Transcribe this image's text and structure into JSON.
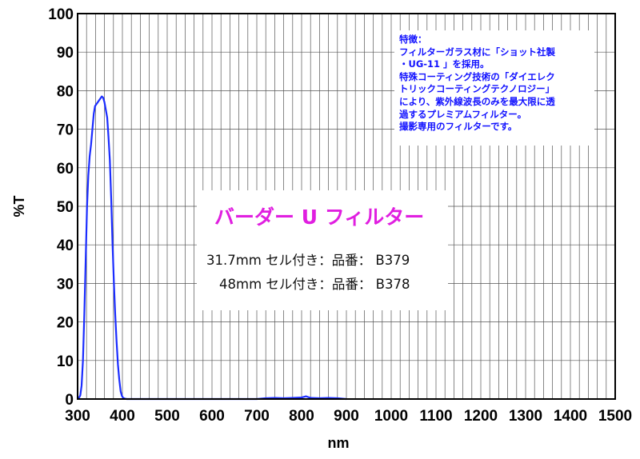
{
  "chart_data": {
    "type": "line",
    "xlabel": "nm",
    "ylabel": "%T",
    "xlim": [
      300,
      1500
    ],
    "ylim": [
      0,
      100
    ],
    "x_ticks": [
      300,
      400,
      500,
      600,
      700,
      800,
      900,
      1000,
      1100,
      1200,
      1300,
      1400,
      1500
    ],
    "y_ticks": [
      0,
      10,
      20,
      30,
      40,
      50,
      60,
      70,
      80,
      90,
      100
    ],
    "x_minor_step": 20,
    "grid": true,
    "line_color": "#1a2cff",
    "series": [
      {
        "x": [
          300,
          303,
          306,
          309,
          312,
          315,
          318,
          321,
          324,
          327,
          330,
          333,
          336,
          339,
          342,
          345,
          348,
          351,
          354,
          357,
          360,
          363,
          366,
          369,
          372,
          375,
          378,
          381,
          384,
          387,
          390,
          393,
          396,
          399,
          402,
          405,
          410,
          420,
          450,
          500,
          550,
          600,
          650,
          700,
          720,
          740,
          760,
          780,
          800,
          810,
          820,
          840,
          860,
          880,
          900
        ],
        "y": [
          0,
          0.3,
          1,
          3.5,
          10,
          22,
          36,
          50,
          58,
          63,
          66,
          70,
          74,
          76,
          76.5,
          77,
          77.5,
          78,
          78.5,
          78.2,
          77,
          75,
          73,
          68,
          62,
          52,
          40,
          30,
          22,
          15,
          9,
          5,
          2,
          0.8,
          0.3,
          0.1,
          0,
          0,
          0,
          0,
          0,
          0,
          0,
          0,
          0.2,
          0.3,
          0.2,
          0.3,
          0.4,
          0.7,
          0.3,
          0.2,
          0.3,
          0.2,
          0
        ]
      }
    ]
  },
  "note": {
    "lines": [
      "特徴：",
      "フィルターガラス材に「ショット社製",
      "・UG-11 」を採用。",
      "特殊コーティング技術の「ダイエレク",
      "トリックコーティングテクノロジー」",
      "により、紫外線波長のみを最大限に透",
      "過するプレミアムフィルター。",
      "撮影専用のフィルターです。"
    ]
  },
  "product": {
    "title": "バーダー U フィルター",
    "line1": "31.7mm セル付き：品番： B379",
    "line2": "48mm セル付き：品番： B378"
  }
}
